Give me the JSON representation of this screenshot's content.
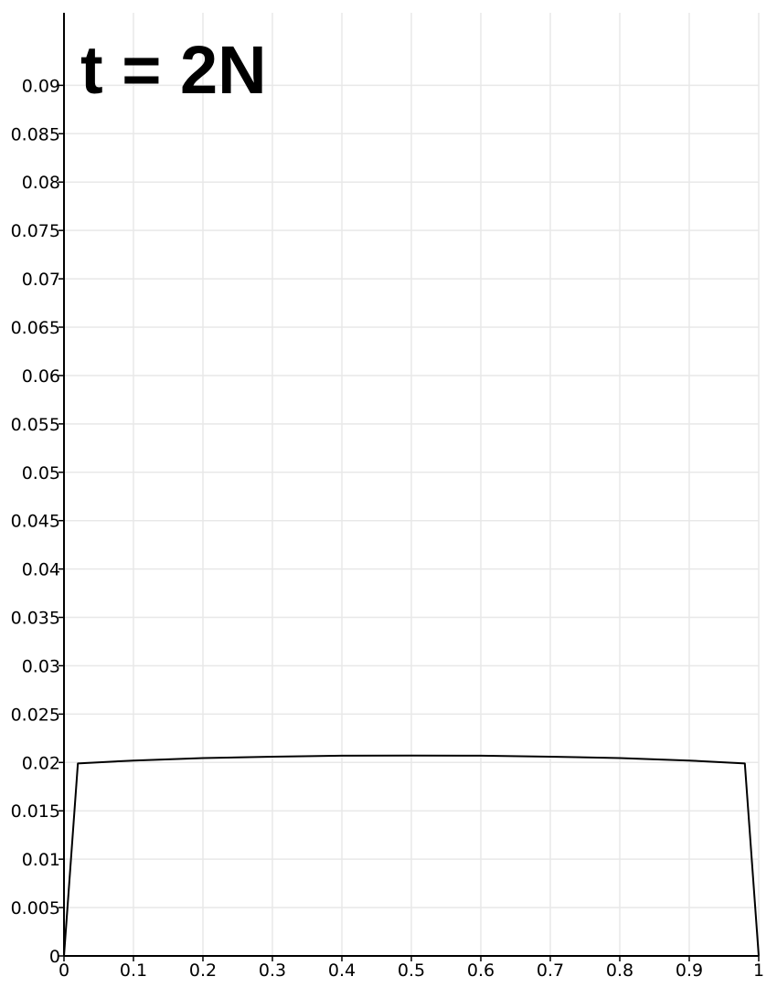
{
  "chart_data": {
    "type": "line",
    "title": "t = 2N",
    "xlabel": "",
    "ylabel": "",
    "xlim": [
      0,
      1
    ],
    "ylim": [
      0,
      0.0975
    ],
    "grid": true,
    "x_ticks": [
      "0",
      "0.1",
      "0.2",
      "0.3",
      "0.4",
      "0.5",
      "0.6",
      "0.7",
      "0.8",
      "0.9",
      "1"
    ],
    "y_ticks": [
      "0",
      "0.005",
      "0.01",
      "0.015",
      "0.02",
      "0.025",
      "0.03",
      "0.035",
      "0.04",
      "0.045",
      "0.05",
      "0.055",
      "0.06",
      "0.065",
      "0.07",
      "0.075",
      "0.08",
      "0.085",
      "0.09"
    ],
    "series": [
      {
        "color": "#000000",
        "x": [
          0,
          0.02,
          0.1,
          0.2,
          0.3,
          0.4,
          0.5,
          0.6,
          0.7,
          0.8,
          0.9,
          0.98,
          1
        ],
        "y": [
          0,
          0.0199,
          0.0202,
          0.02045,
          0.0206,
          0.0207,
          0.02072,
          0.0207,
          0.0206,
          0.02045,
          0.0202,
          0.0199,
          0
        ]
      }
    ]
  }
}
